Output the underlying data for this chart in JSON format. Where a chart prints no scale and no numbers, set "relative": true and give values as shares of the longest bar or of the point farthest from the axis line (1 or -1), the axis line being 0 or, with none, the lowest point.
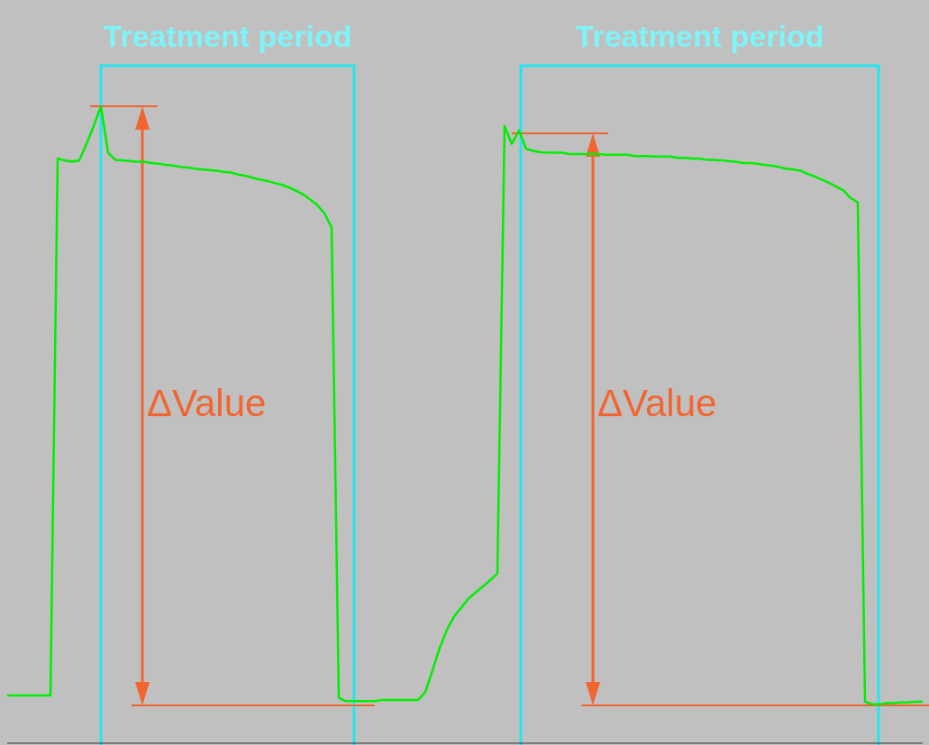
{
  "chart_data": {
    "type": "line",
    "relative": true,
    "marker": "none",
    "line_style": "solid",
    "categories": [
      null,
      null,
      null,
      null,
      null,
      null,
      null,
      null,
      null,
      null,
      null,
      null,
      null,
      null,
      null,
      null,
      null,
      null,
      null,
      null,
      null,
      null,
      null,
      null,
      null,
      null,
      null,
      null,
      null,
      null,
      null,
      null,
      null,
      null,
      null,
      null,
      null,
      null,
      null,
      null,
      null,
      null,
      null,
      null,
      null,
      null,
      null,
      null,
      null,
      null,
      null,
      null,
      null,
      null,
      null,
      null,
      null,
      null,
      null,
      null,
      null,
      null,
      null,
      null,
      null,
      null,
      null,
      null,
      null,
      null,
      null,
      null,
      null,
      null,
      null,
      null,
      null,
      null,
      null,
      null,
      null,
      null,
      null,
      null,
      null,
      null,
      null,
      null,
      null,
      null,
      null,
      null,
      null,
      null,
      null,
      null,
      null,
      null,
      null,
      null,
      null,
      null,
      null,
      null,
      null,
      null,
      null,
      null,
      null,
      null,
      null,
      null,
      null,
      null,
      null,
      null,
      null,
      null,
      null,
      null,
      null,
      null,
      null,
      null,
      null,
      null,
      null,
      null
    ],
    "series": [
      {
        "color": "#00ee00",
        "values": [
          0.075,
          0.075,
          0.075,
          0.075,
          0.075,
          0.075,
          0.075,
          0.918,
          0.915,
          0.913,
          0.915,
          0.941,
          0.969,
          1.0,
          0.927,
          0.916,
          0.915,
          0.914,
          0.913,
          0.913,
          0.911,
          0.91,
          0.908,
          0.907,
          0.905,
          0.904,
          0.902,
          0.901,
          0.9,
          0.899,
          0.897,
          0.896,
          0.893,
          0.891,
          0.888,
          0.885,
          0.883,
          0.88,
          0.877,
          0.873,
          0.868,
          0.862,
          0.854,
          0.845,
          0.832,
          0.81,
          0.071,
          0.066,
          0.066,
          0.066,
          0.066,
          0.066,
          0.068,
          0.068,
          0.068,
          0.068,
          0.068,
          0.068,
          0.08,
          0.114,
          0.15,
          0.178,
          0.199,
          0.213,
          0.227,
          0.237,
          0.246,
          0.256,
          0.266,
          0.969,
          0.941,
          0.962,
          0.933,
          0.93,
          0.928,
          0.927,
          0.927,
          0.927,
          0.925,
          0.925,
          0.925,
          0.925,
          0.925,
          0.924,
          0.924,
          0.924,
          0.924,
          0.922,
          0.922,
          0.922,
          0.921,
          0.921,
          0.921,
          0.919,
          0.919,
          0.918,
          0.918,
          0.916,
          0.916,
          0.915,
          0.914,
          0.913,
          0.911,
          0.911,
          0.91,
          0.908,
          0.907,
          0.905,
          0.902,
          0.901,
          0.899,
          0.894,
          0.89,
          0.885,
          0.88,
          0.874,
          0.868,
          0.856,
          0.849,
          0.065,
          0.061,
          0.061,
          0.063,
          0.063,
          0.064,
          0.064,
          0.065,
          0.065
        ]
      }
    ],
    "annotations": [
      "Treatment period",
      "Treatment period",
      "ΔValue",
      "ΔValue"
    ]
  }
}
